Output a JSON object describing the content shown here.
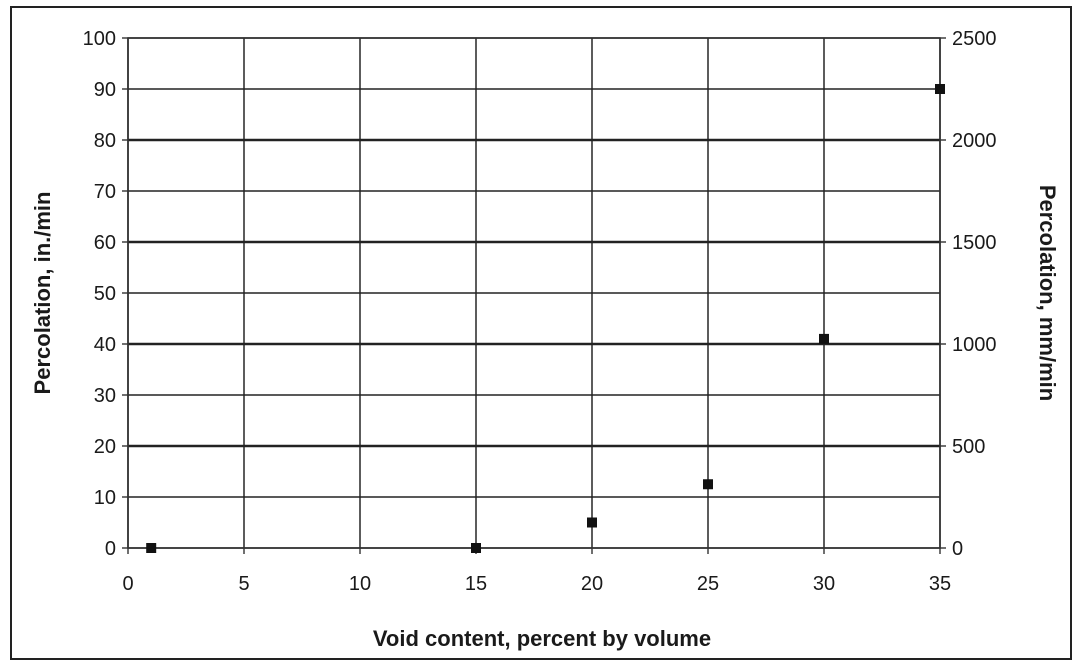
{
  "chart_data": {
    "type": "scatter",
    "title": "",
    "xlabel": "Void content, percent by volume",
    "ylabel": "Percolation, in./min",
    "y2label": "Percolation, mm/min",
    "xlim": [
      0,
      35
    ],
    "ylim": [
      0,
      100
    ],
    "y2lim": [
      0,
      2500
    ],
    "xticks": [
      "0",
      "5",
      "10",
      "15",
      "20",
      "25",
      "30",
      "35"
    ],
    "yticks": [
      "0",
      "10",
      "20",
      "30",
      "40",
      "50",
      "60",
      "70",
      "80",
      "90",
      "100"
    ],
    "y2ticks": [
      "0",
      "500",
      "1000",
      "1500",
      "2000",
      "2500"
    ],
    "grid": true,
    "legend": "none",
    "marker_color": "#111111",
    "series": [
      {
        "x": [
          1,
          15,
          20,
          25,
          30,
          35
        ],
        "y": [
          0,
          0,
          5,
          12.5,
          41,
          90
        ]
      }
    ]
  }
}
